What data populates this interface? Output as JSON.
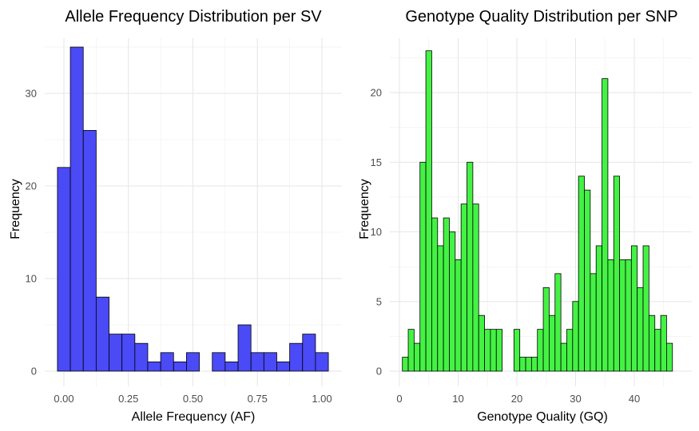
{
  "chart_data": [
    {
      "type": "bar",
      "title": "Allele Frequency Distribution per SV",
      "xlabel": "Allele Frequency (AF)",
      "ylabel": "Frequency",
      "fill_color": "#4a4af7",
      "grid": true,
      "bin_width": 0.05,
      "x": [
        0.0,
        0.05,
        0.1,
        0.15,
        0.2,
        0.25,
        0.3,
        0.35,
        0.4,
        0.45,
        0.5,
        0.55,
        0.6,
        0.65,
        0.7,
        0.75,
        0.8,
        0.85,
        0.9,
        0.95,
        1.0
      ],
      "values": [
        22,
        35,
        26,
        8,
        4,
        4,
        3,
        1,
        2,
        1,
        2,
        0,
        2,
        1,
        5,
        2,
        2,
        1,
        3,
        4,
        2
      ],
      "xlim": [
        -0.025,
        1.025
      ],
      "ylim": [
        0,
        35
      ],
      "xticks": [
        0.0,
        0.25,
        0.5,
        0.75,
        1.0
      ],
      "xtick_labels": [
        "0.00",
        "0.25",
        "0.50",
        "0.75",
        "1.00"
      ],
      "yticks": [
        0,
        10,
        20,
        30
      ],
      "ytick_labels": [
        "0",
        "10",
        "20",
        "30"
      ]
    },
    {
      "type": "bar",
      "title": "Genotype Quality Distribution per SNP",
      "xlabel": "Genotype Quality (GQ)",
      "ylabel": "Frequency",
      "fill_color": "#44f244",
      "grid": true,
      "bin_width": 1,
      "x": [
        1,
        2,
        3,
        4,
        5,
        6,
        7,
        8,
        9,
        10,
        11,
        12,
        13,
        14,
        15,
        16,
        17,
        18,
        19,
        20,
        21,
        22,
        23,
        24,
        25,
        26,
        27,
        28,
        29,
        30,
        31,
        32,
        33,
        34,
        35,
        36,
        37,
        38,
        39,
        40,
        41,
        42,
        43,
        44,
        45,
        46
      ],
      "values": [
        1,
        3,
        2,
        15,
        23,
        11,
        9,
        11,
        10,
        8,
        12,
        15,
        12,
        4,
        3,
        3,
        3,
        0,
        0,
        3,
        1,
        1,
        1,
        3,
        6,
        4,
        7,
        2,
        3,
        5,
        14,
        13,
        7,
        9,
        21,
        8,
        14,
        8,
        8,
        9,
        6,
        9,
        4,
        3,
        4,
        2
      ],
      "xlim": [
        0.5,
        46.5
      ],
      "ylim": [
        0,
        23
      ],
      "xticks": [
        0,
        10,
        20,
        30,
        40
      ],
      "xtick_labels": [
        "0",
        "10",
        "20",
        "30",
        "40"
      ],
      "yticks": [
        0,
        5,
        10,
        15,
        20
      ],
      "ytick_labels": [
        "0",
        "5",
        "10",
        "15",
        "20"
      ]
    }
  ]
}
